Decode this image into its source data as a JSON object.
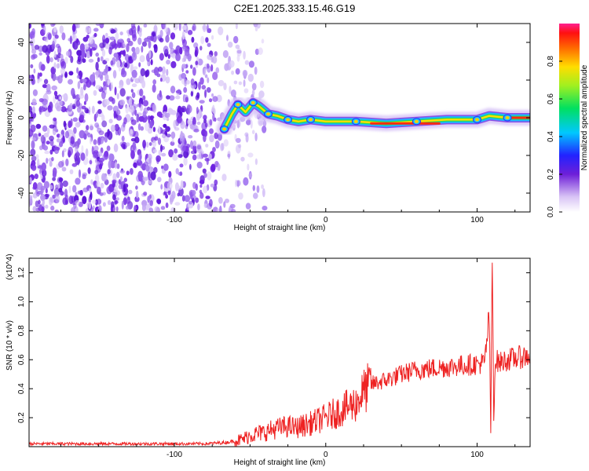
{
  "title": "C2E1.2025.333.15.46.G19",
  "chart_data": [
    {
      "type": "heatmap",
      "xlabel": "Height of straight line (km)",
      "ylabel": "Frequency (Hz)",
      "xlim": [
        -196,
        135
      ],
      "ylim": [
        -50,
        50
      ],
      "x_ticks": [
        -100,
        0,
        100
      ],
      "y_ticks": [
        -40,
        -20,
        0,
        20,
        40
      ],
      "colorbar": {
        "label": "Normalized spectral amplitude",
        "range": [
          0,
          1
        ],
        "ticks": [
          0.0,
          0.2,
          0.4,
          0.6,
          0.8
        ]
      },
      "noise_region": {
        "x_range": [
          -196,
          -40
        ],
        "y_range": [
          -50,
          50
        ]
      },
      "ridge": [
        {
          "x": -67,
          "y": -6
        },
        {
          "x": -62,
          "y": 2
        },
        {
          "x": -58,
          "y": 7
        },
        {
          "x": -53,
          "y": 3
        },
        {
          "x": -48,
          "y": 8
        },
        {
          "x": -44,
          "y": 6
        },
        {
          "x": -38,
          "y": 2
        },
        {
          "x": -32,
          "y": 1
        },
        {
          "x": -25,
          "y": -1
        },
        {
          "x": -18,
          "y": -2
        },
        {
          "x": -10,
          "y": -1
        },
        {
          "x": 0,
          "y": -2
        },
        {
          "x": 20,
          "y": -2
        },
        {
          "x": 40,
          "y": -3
        },
        {
          "x": 60,
          "y": -2
        },
        {
          "x": 80,
          "y": -1
        },
        {
          "x": 100,
          "y": -1
        },
        {
          "x": 108,
          "y": 1
        },
        {
          "x": 120,
          "y": 0
        },
        {
          "x": 135,
          "y": 0
        }
      ]
    },
    {
      "type": "line",
      "xlabel": "Height of straight line (km)",
      "ylabel": "SNR (10 * v/v)",
      "y_multiplier": "(x10^4)",
      "xlim": [
        -196,
        135
      ],
      "ylim": [
        0,
        1.3
      ],
      "x_ticks": [
        -100,
        0,
        100
      ],
      "y_ticks": [
        0.2,
        0.4,
        0.6,
        0.8,
        1.0,
        1.2
      ],
      "color": "#ee2222",
      "series": [
        {
          "x": [
            -196,
            -170,
            -140,
            -110,
            -80,
            -65,
            -55,
            -50,
            -45,
            -40,
            -35,
            -30,
            -25,
            -20,
            -10,
            0,
            10,
            20,
            25,
            30,
            40,
            50,
            60,
            70,
            80,
            90,
            100,
            105,
            108,
            109,
            110,
            111,
            112,
            115,
            120,
            130,
            135
          ],
          "y": [
            0.02,
            0.02,
            0.02,
            0.02,
            0.02,
            0.03,
            0.05,
            0.08,
            0.09,
            0.1,
            0.12,
            0.13,
            0.14,
            0.13,
            0.16,
            0.2,
            0.25,
            0.3,
            0.38,
            0.43,
            0.46,
            0.5,
            0.53,
            0.54,
            0.55,
            0.56,
            0.57,
            0.58,
            0.9,
            0.1,
            1.3,
            0.2,
            0.6,
            0.58,
            0.6,
            0.62,
            0.63
          ]
        }
      ]
    }
  ]
}
